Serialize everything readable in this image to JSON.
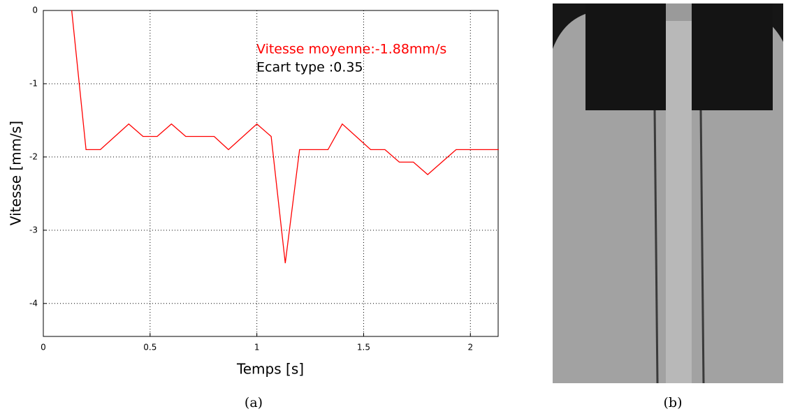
{
  "chart_data": {
    "type": "line",
    "x_label": "Temps [s]",
    "y_label": "Vitesse [mm/s]",
    "annotations": [
      "Vitesse moyenne:-1.88mm/s",
      "Ecart type :0.35"
    ],
    "annotation_colors": [
      "#ff0000",
      "#000000"
    ],
    "series": [
      {
        "name": "Vitesse",
        "color": "#ff0000",
        "x": [
          0.133,
          0.2,
          0.267,
          0.4,
          0.467,
          0.533,
          0.6,
          0.667,
          0.8,
          0.867,
          1.0,
          1.067,
          1.133,
          1.2,
          1.333,
          1.4,
          1.533,
          1.6,
          1.667,
          1.733,
          1.8,
          1.933,
          2.0,
          2.133
        ],
        "values": [
          0,
          -1.9,
          -1.9,
          -1.55,
          -1.72,
          -1.72,
          -1.55,
          -1.72,
          -1.72,
          -1.9,
          -1.55,
          -1.72,
          -3.45,
          -1.9,
          -1.9,
          -1.55,
          -1.9,
          -1.9,
          -2.07,
          -2.07,
          -2.24,
          -1.9,
          -1.9,
          -1.9
        ]
      }
    ],
    "xlim": [
      0,
      2.13
    ],
    "xticks": [
      0,
      0.5,
      1,
      1.5,
      2
    ],
    "ylim": [
      -4.45,
      0
    ],
    "yticks": [
      0,
      -1,
      -2,
      -3,
      -4
    ],
    "grid": true
  },
  "captions": [
    "(a)",
    "(b)"
  ]
}
